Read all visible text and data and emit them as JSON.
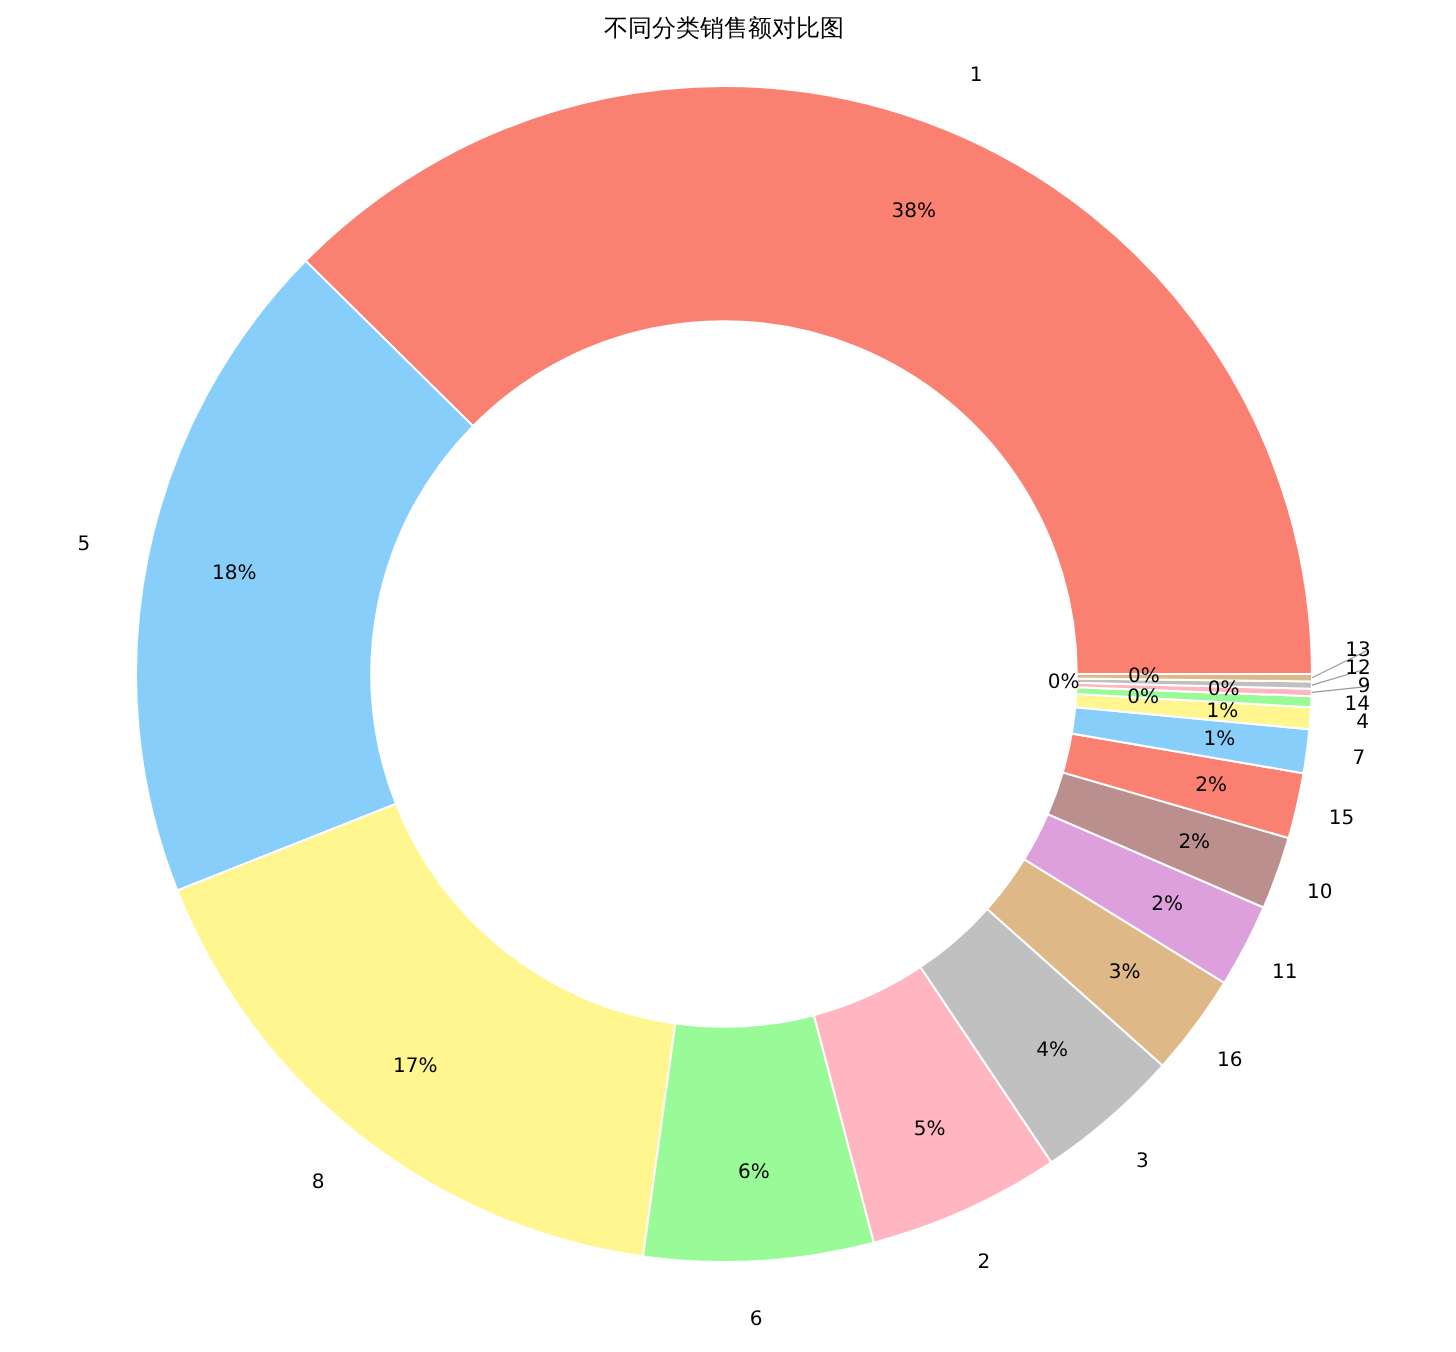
{
  "chart_data": {
    "type": "donut",
    "title": "不同分类销售额对比图",
    "categories": [
      "1",
      "5",
      "8",
      "6",
      "2",
      "3",
      "16",
      "11",
      "10",
      "15",
      "7",
      "4",
      "14",
      "9",
      "12",
      "13"
    ],
    "values": [
      37.6,
      18.4,
      16.8,
      6.3,
      5.3,
      4.0,
      2.8,
      2.3,
      2.0,
      1.8,
      1.2,
      0.6,
      0.3,
      0.2,
      0.2,
      0.2
    ],
    "colors": [
      "#fa8072",
      "#87cefa",
      "#fff68f",
      "#98fb98",
      "#ffb6c1",
      "#c0c0c0",
      "#deb887",
      "#dda0dd",
      "#bc8f8f",
      "#fa8072",
      "#87cefa",
      "#fff68f",
      "#98fb98",
      "#ffb6c1",
      "#c0c0c0",
      "#deb887"
    ],
    "value_labels": [
      "38%",
      "18%",
      "17%",
      "6%",
      "5%",
      "4%",
      "3%",
      "2%",
      "2%",
      "2%",
      "1%",
      "1%",
      "0%",
      "0%",
      "0%",
      "0%"
    ]
  }
}
